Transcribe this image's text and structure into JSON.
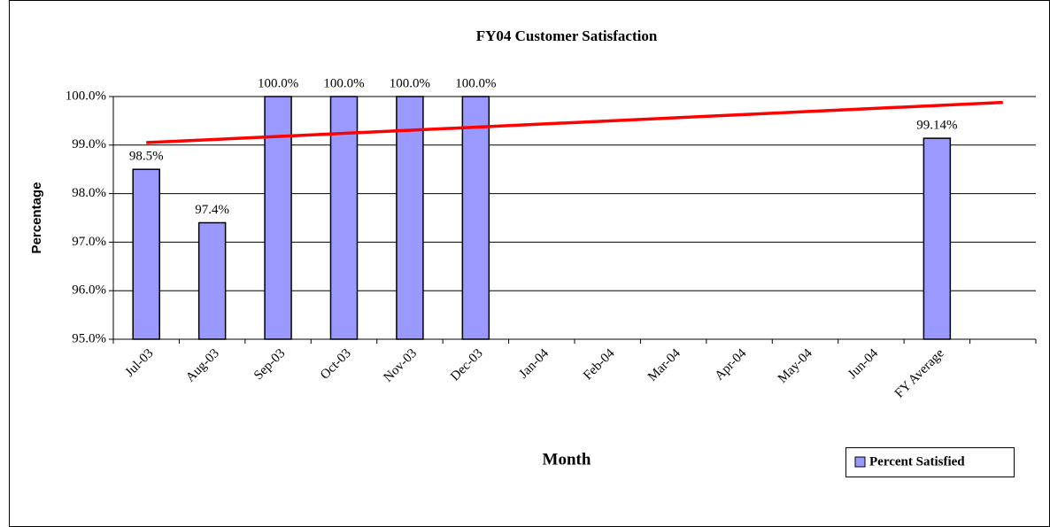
{
  "chart_data": {
    "type": "bar",
    "title": "FY04 Customer Satisfaction",
    "x_label": "Month",
    "y_label": "Percentage",
    "categories": [
      "Jul-03",
      "Aug-03",
      "Sep-03",
      "Oct-03",
      "Nov-03",
      "Dec-03",
      "Jan-04",
      "Feb-04",
      "Mar-04",
      "Apr-04",
      "May-04",
      "Jun-04",
      "FY Average",
      null
    ],
    "series": [
      {
        "name": "Percent Satisfied",
        "color": "#9999ff",
        "values": [
          98.5,
          97.4,
          100,
          100,
          100,
          100,
          null,
          null,
          null,
          null,
          null,
          null,
          99.14,
          null
        ],
        "value_labels": [
          "98.5%",
          "97.4%",
          "100.0%",
          "100.0%",
          "100.0%",
          "100.0%",
          null,
          null,
          null,
          null,
          null,
          null,
          "99.14%",
          null
        ]
      }
    ],
    "trendline": {
      "color": "#ff0000",
      "values": [
        99.05,
        99.88
      ]
    },
    "ylim": [
      95,
      100
    ],
    "yticks": [
      {
        "value": 95,
        "label": "95.0%"
      },
      {
        "value": 96,
        "label": "96.0%"
      },
      {
        "value": 97,
        "label": "97.0%"
      },
      {
        "value": 98,
        "label": "98.0%"
      },
      {
        "value": 99,
        "label": "99.0%"
      },
      {
        "value": 100,
        "label": "100.0%"
      }
    ],
    "grid": true,
    "legend": "bottom-right"
  }
}
